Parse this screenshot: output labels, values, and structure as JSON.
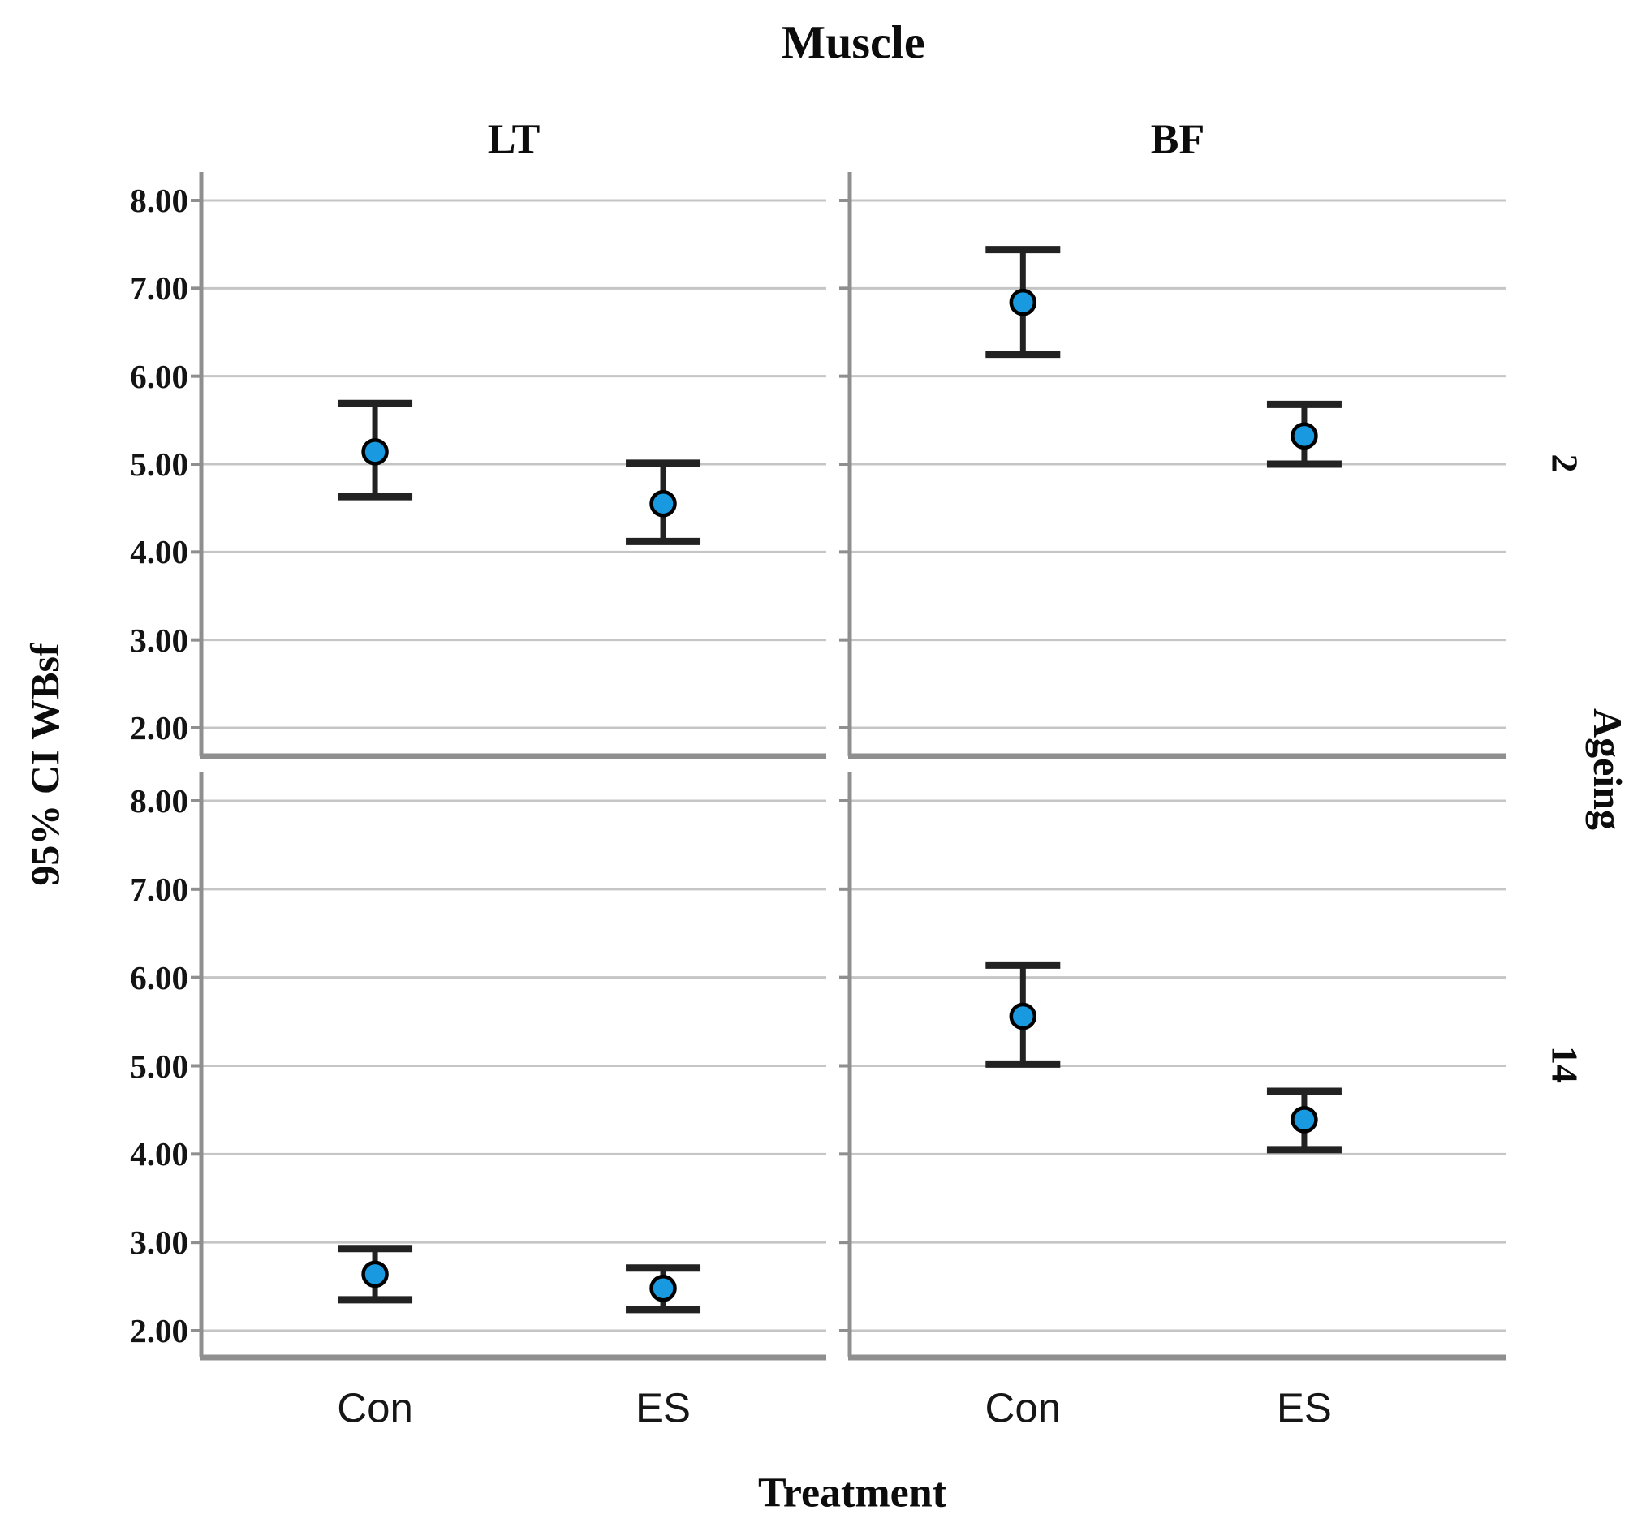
{
  "chart_data": {
    "type": "errorbar",
    "title_top": "Muscle",
    "xlabel": "Treatment",
    "ylabel": "95% CI WBsf",
    "row_header": "Ageing",
    "columns": [
      "LT",
      "BF"
    ],
    "rows": [
      "2",
      "14"
    ],
    "x_categories": [
      "Con",
      "ES"
    ],
    "y_ticks": [
      "8.00",
      "7.00",
      "6.00",
      "5.00",
      "4.00",
      "3.00",
      "2.00"
    ],
    "y_gridline_values": [
      8,
      7,
      6,
      5,
      4,
      3,
      2
    ],
    "ylim_gridlines": [
      2,
      8
    ],
    "legend": "none",
    "grid": "horizontal-only",
    "marker_color": "#1899e0",
    "marker_outline": "#000000",
    "errorbar_color": "#222222",
    "gridline_color": "#c5c5c5",
    "axis_color": "#8f8f8f",
    "panels": [
      {
        "column": "LT",
        "row": "2",
        "points": [
          {
            "treatment": "Con",
            "mean": 5.14,
            "ci_low": 4.63,
            "ci_high": 5.69
          },
          {
            "treatment": "ES",
            "mean": 4.55,
            "ci_low": 4.12,
            "ci_high": 5.01
          }
        ]
      },
      {
        "column": "BF",
        "row": "2",
        "points": [
          {
            "treatment": "Con",
            "mean": 6.84,
            "ci_low": 6.25,
            "ci_high": 7.44
          },
          {
            "treatment": "ES",
            "mean": 5.32,
            "ci_low": 5.0,
            "ci_high": 5.68
          }
        ]
      },
      {
        "column": "LT",
        "row": "14",
        "points": [
          {
            "treatment": "Con",
            "mean": 2.64,
            "ci_low": 2.35,
            "ci_high": 2.93
          },
          {
            "treatment": "ES",
            "mean": 2.48,
            "ci_low": 2.24,
            "ci_high": 2.71
          }
        ]
      },
      {
        "column": "BF",
        "row": "14",
        "points": [
          {
            "treatment": "Con",
            "mean": 5.56,
            "ci_low": 5.02,
            "ci_high": 6.14
          },
          {
            "treatment": "ES",
            "mean": 4.39,
            "ci_low": 4.05,
            "ci_high": 4.71
          }
        ]
      }
    ]
  }
}
